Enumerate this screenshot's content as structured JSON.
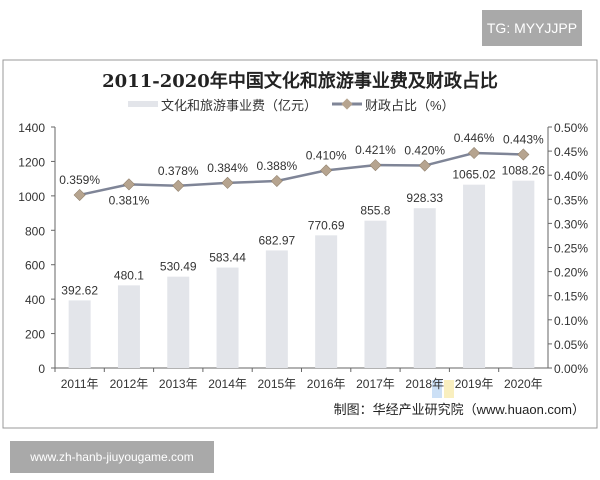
{
  "watermark_top": "TG: MYYJJPP",
  "watermark_bottom": "www.zh-hanb-jiuyougame.com",
  "watermark_logo": "华经情报网 huaon.com",
  "source": "制图：华经产业研究院（www.huaon.com）",
  "chart_data": {
    "type": "bar+line",
    "title": "2011-2020年中国文化和旅游事业费及财政占比",
    "categories": [
      "2011年",
      "2012年",
      "2013年",
      "2014年",
      "2015年",
      "2016年",
      "2017年",
      "2018年",
      "2019年",
      "2020年"
    ],
    "series": [
      {
        "name": "文化和旅游事业费（亿元）",
        "type": "bar",
        "axis": "left",
        "color": "#e3e5ea",
        "values": [
          392.62,
          480.1,
          530.49,
          583.44,
          682.97,
          770.69,
          855.8,
          928.33,
          1065.02,
          1088.26
        ],
        "labels": [
          "392.62",
          "480.1",
          "530.49",
          "583.44",
          "682.97",
          "770.69",
          "855.8",
          "928.33",
          "1065.02",
          "1088.26"
        ]
      },
      {
        "name": "财政占比（%）",
        "type": "line",
        "axis": "right",
        "color": "#7f8597",
        "marker_color": "#b6a48f",
        "values": [
          0.359,
          0.381,
          0.378,
          0.384,
          0.388,
          0.41,
          0.421,
          0.42,
          0.446,
          0.443
        ],
        "labels": [
          "0.359%",
          "0.381%",
          "0.378%",
          "0.384%",
          "0.388%",
          "0.410%",
          "0.421%",
          "0.420%",
          "0.446%",
          "0.443%"
        ]
      }
    ],
    "y_left": {
      "min": 0,
      "max": 1400,
      "ticks": [
        "0",
        "200",
        "400",
        "600",
        "800",
        "1000",
        "1200",
        "1400"
      ]
    },
    "y_right": {
      "min": 0,
      "max": 0.5,
      "ticks": [
        "0.00%",
        "0.05%",
        "0.10%",
        "0.15%",
        "0.20%",
        "0.25%",
        "0.30%",
        "0.35%",
        "0.40%",
        "0.45%",
        "0.50%"
      ]
    },
    "grid": false,
    "legend": "top"
  }
}
